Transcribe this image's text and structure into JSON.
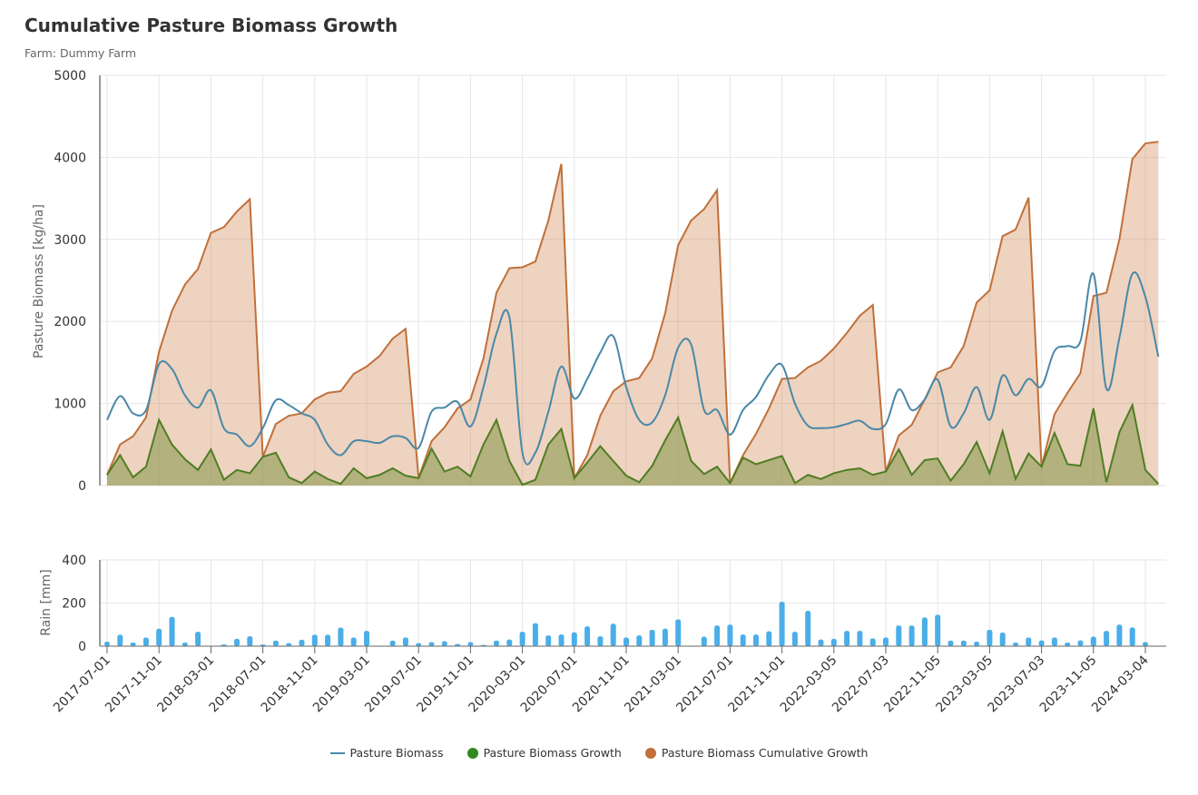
{
  "title": "Cumulative Pasture Biomass Growth",
  "subtitle": "Farm: Dummy Farm",
  "chart_data": [
    {
      "type": "line",
      "ylabel": "Pasture Biomass [kg/ha]",
      "ylim": [
        0,
        5000
      ],
      "yticks": [
        "0",
        "1000",
        "2000",
        "3000",
        "4000",
        "5000"
      ],
      "grid": true,
      "x_start": "2017-07",
      "x_interval": "monthly",
      "xtick_labels": [
        "2017-07-01",
        "2017-11-01",
        "2018-03-01",
        "2018-07-01",
        "2018-11-01",
        "2019-03-01",
        "2019-07-01",
        "2019-11-01",
        "2020-03-01",
        "2020-07-01",
        "2020-11-01",
        "2021-03-01",
        "2021-07-01",
        "2021-11-01",
        "2022-03-05",
        "2022-07-03",
        "2022-11-05",
        "2023-03-05",
        "2023-07-03",
        "2023-11-05",
        "2024-03-04"
      ],
      "series": [
        {
          "name": "Pasture Biomass",
          "style": "smooth-line",
          "color": "#4a88a8",
          "values": [
            800,
            1090,
            880,
            920,
            1480,
            1420,
            1100,
            950,
            1160,
            700,
            620,
            480,
            700,
            1040,
            980,
            880,
            800,
            500,
            370,
            540,
            540,
            520,
            600,
            580,
            460,
            900,
            950,
            1020,
            720,
            1200,
            1850,
            2050,
            400,
            400,
            900,
            1450,
            1060,
            1300,
            1620,
            1820,
            1200,
            800,
            770,
            1100,
            1680,
            1720,
            920,
            920,
            620,
            920,
            1080,
            1350,
            1470,
            1000,
            730,
            700,
            710,
            750,
            790,
            690,
            750,
            1170,
            920,
            1050,
            1290,
            720,
            880,
            1200,
            800,
            1340,
            1100,
            1300,
            1210,
            1640,
            1700,
            1760,
            2580,
            1180,
            1800,
            2580,
            2300,
            1570
          ]
        },
        {
          "name": "Pasture Biomass Growth",
          "style": "area",
          "color": "#4f7d23",
          "values": [
            130,
            370,
            100,
            230,
            800,
            500,
            320,
            190,
            440,
            70,
            190,
            150,
            350,
            400,
            100,
            30,
            170,
            80,
            20,
            210,
            90,
            130,
            210,
            120,
            90,
            450,
            170,
            230,
            110,
            500,
            800,
            300,
            10,
            70,
            500,
            690,
            90,
            280,
            480,
            300,
            120,
            40,
            240,
            550,
            830,
            300,
            140,
            230,
            30,
            340,
            260,
            310,
            360,
            30,
            130,
            80,
            150,
            190,
            210,
            130,
            170,
            440,
            130,
            310,
            330,
            60,
            260,
            530,
            150,
            660,
            80,
            390,
            230,
            640,
            260,
            240,
            940,
            40,
            650,
            980,
            190,
            20
          ]
        },
        {
          "name": "Pasture Biomass Cumulative Growth",
          "style": "area",
          "color": "#c0703a",
          "values": [
            130,
            500,
            600,
            830,
            1630,
            2130,
            2450,
            2640,
            3080,
            3150,
            3340,
            3490,
            350,
            750,
            850,
            880,
            1050,
            1130,
            1150,
            1360,
            1450,
            1580,
            1790,
            1910,
            90,
            540,
            710,
            940,
            1050,
            1550,
            2350,
            2650,
            2660,
            2730,
            3230,
            3920,
            90,
            370,
            850,
            1150,
            1270,
            1310,
            1550,
            2100,
            2930,
            3230,
            3370,
            3600,
            30,
            370,
            630,
            940,
            1300,
            1310,
            1440,
            1520,
            1670,
            1860,
            2070,
            2200,
            170,
            610,
            740,
            1050,
            1380,
            1440,
            1700,
            2230,
            2380,
            3040,
            3120,
            3510,
            230,
            870,
            1130,
            1370,
            2310,
            2350,
            3000,
            3980,
            4170,
            4190
          ]
        }
      ],
      "legend_position": "bottom-center"
    },
    {
      "type": "bar",
      "ylabel": "Rain [mm]",
      "ylim": [
        0,
        400
      ],
      "yticks": [
        "0",
        "200",
        "400"
      ],
      "color": "#4aaee8",
      "values": [
        21,
        53,
        17,
        40,
        81,
        136,
        17,
        67,
        0,
        8,
        34,
        46,
        8,
        26,
        14,
        30,
        53,
        53,
        86,
        40,
        71,
        0,
        26,
        40,
        14,
        19,
        23,
        10,
        19,
        6,
        26,
        31,
        67,
        107,
        50,
        54,
        64,
        92,
        46,
        104,
        40,
        50,
        76,
        81,
        124,
        0,
        44,
        96,
        100,
        54,
        54,
        69,
        206,
        67,
        164,
        31,
        34,
        71,
        71,
        36,
        40,
        96,
        96,
        133,
        146,
        26,
        26,
        21,
        76,
        63,
        17,
        40,
        27,
        40,
        17,
        27,
        44,
        71,
        100,
        87,
        19,
        0
      ]
    }
  ]
}
